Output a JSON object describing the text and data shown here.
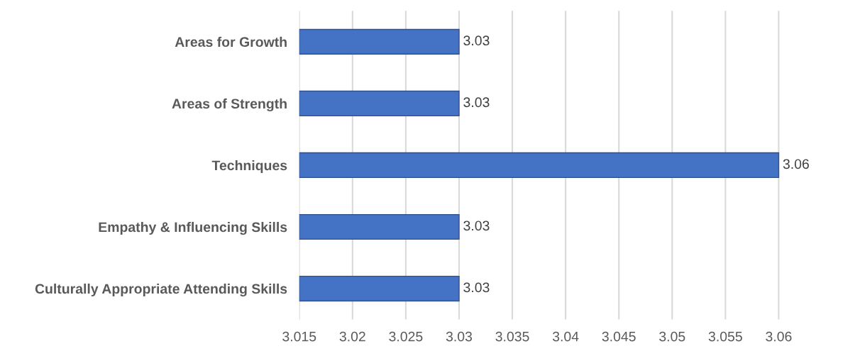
{
  "chart_data": {
    "type": "bar",
    "orientation": "horizontal",
    "categories": [
      "Areas for Growth",
      "Areas of Strength",
      "Techniques",
      "Empathy & Influencing Skills",
      "Culturally Appropriate Attending Skills"
    ],
    "values": [
      3.03,
      3.03,
      3.06,
      3.03,
      3.03
    ],
    "color": "#4472c4",
    "xlim": [
      3.015,
      3.06
    ],
    "xticks": [
      3.015,
      3.02,
      3.025,
      3.03,
      3.035,
      3.04,
      3.045,
      3.05,
      3.055,
      3.06
    ],
    "grid": "x",
    "data_labels": true,
    "legend": false
  }
}
